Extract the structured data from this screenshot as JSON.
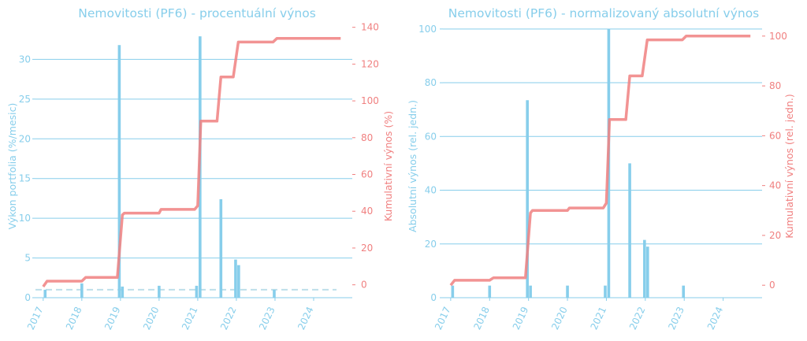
{
  "colors": {
    "bar": "#87CEEB",
    "line": "#F08080",
    "title": "#87CEEB",
    "dash": "#ADD8E6"
  },
  "chart_data": [
    {
      "type": "bar+line",
      "title": "Nemovitosti (PF6) - procentuální výnos",
      "ylabel_left": "Výkon portfolia (%/mesic)",
      "ylabel_right": "Kumulativní výnos (%)",
      "x_ticks": [
        "2017",
        "2018",
        "2019",
        "2020",
        "2021",
        "2022",
        "2023",
        "2024"
      ],
      "xlim": [
        2016.8,
        2025.0
      ],
      "ylim_left": [
        0,
        34.5
      ],
      "ylim_right": [
        -7,
        142
      ],
      "yticks_left": [
        0,
        5,
        10,
        15,
        20,
        25,
        30
      ],
      "yticks_right": [
        0,
        20,
        40,
        60,
        80,
        100,
        120,
        140
      ],
      "grid": true,
      "bars": [
        {
          "x": 2017.05,
          "y": 1.0
        },
        {
          "x": 2018.0,
          "y": 1.8
        },
        {
          "x": 2018.97,
          "y": 31.8
        },
        {
          "x": 2019.05,
          "y": 1.4
        },
        {
          "x": 2020.0,
          "y": 1.5
        },
        {
          "x": 2020.97,
          "y": 1.5
        },
        {
          "x": 2021.06,
          "y": 32.9
        },
        {
          "x": 2021.6,
          "y": 12.4
        },
        {
          "x": 2021.98,
          "y": 4.8
        },
        {
          "x": 2022.06,
          "y": 4.1
        },
        {
          "x": 2022.98,
          "y": 1.0
        }
      ],
      "cumulative": [
        {
          "x": 2017.0,
          "y": -1
        },
        {
          "x": 2017.1,
          "y": 2
        },
        {
          "x": 2018.0,
          "y": 2
        },
        {
          "x": 2018.1,
          "y": 4
        },
        {
          "x": 2018.92,
          "y": 4
        },
        {
          "x": 2019.05,
          "y": 38
        },
        {
          "x": 2019.1,
          "y": 39
        },
        {
          "x": 2020.0,
          "y": 39
        },
        {
          "x": 2020.05,
          "y": 41
        },
        {
          "x": 2020.92,
          "y": 41
        },
        {
          "x": 2021.0,
          "y": 43
        },
        {
          "x": 2021.08,
          "y": 89
        },
        {
          "x": 2021.5,
          "y": 89
        },
        {
          "x": 2021.6,
          "y": 113
        },
        {
          "x": 2021.92,
          "y": 113
        },
        {
          "x": 2022.05,
          "y": 132
        },
        {
          "x": 2022.95,
          "y": 132
        },
        {
          "x": 2023.05,
          "y": 134
        },
        {
          "x": 2024.7,
          "y": 134
        }
      ],
      "dashed_y_left": 1.0
    },
    {
      "type": "bar+line",
      "title": "Nemovitosti (PF6) - normalizovaný absolutní výnos",
      "ylabel_left": "Absolutní výnos (rel. jedn.)",
      "ylabel_right": "Kumulativní výnos (rel. jedn.)",
      "x_ticks": [
        "2017",
        "2018",
        "2019",
        "2020",
        "2021",
        "2022",
        "2023",
        "2024"
      ],
      "xlim": [
        2016.8,
        2025.0
      ],
      "ylim_left": [
        0,
        102
      ],
      "ylim_right": [
        -5,
        105
      ],
      "yticks_left": [
        0,
        20,
        40,
        60,
        80,
        100
      ],
      "yticks_right": [
        0,
        20,
        40,
        60,
        80,
        100
      ],
      "grid": true,
      "bars": [
        {
          "x": 2017.05,
          "y": 4.5
        },
        {
          "x": 2018.0,
          "y": 4.5
        },
        {
          "x": 2018.97,
          "y": 73.5
        },
        {
          "x": 2019.05,
          "y": 4.5
        },
        {
          "x": 2020.0,
          "y": 4.5
        },
        {
          "x": 2020.97,
          "y": 4.5
        },
        {
          "x": 2021.06,
          "y": 100
        },
        {
          "x": 2021.6,
          "y": 50
        },
        {
          "x": 2021.98,
          "y": 21.5
        },
        {
          "x": 2022.06,
          "y": 19.0
        },
        {
          "x": 2022.98,
          "y": 4.5
        }
      ],
      "cumulative": [
        {
          "x": 2017.0,
          "y": 0
        },
        {
          "x": 2017.1,
          "y": 2
        },
        {
          "x": 2018.0,
          "y": 2
        },
        {
          "x": 2018.1,
          "y": 3
        },
        {
          "x": 2018.92,
          "y": 3
        },
        {
          "x": 2019.05,
          "y": 29
        },
        {
          "x": 2019.1,
          "y": 30
        },
        {
          "x": 2020.0,
          "y": 30
        },
        {
          "x": 2020.05,
          "y": 31
        },
        {
          "x": 2020.92,
          "y": 31
        },
        {
          "x": 2021.0,
          "y": 33
        },
        {
          "x": 2021.08,
          "y": 66.5
        },
        {
          "x": 2021.5,
          "y": 66.5
        },
        {
          "x": 2021.6,
          "y": 84
        },
        {
          "x": 2021.92,
          "y": 84
        },
        {
          "x": 2022.05,
          "y": 98.5
        },
        {
          "x": 2022.95,
          "y": 98.5
        },
        {
          "x": 2023.05,
          "y": 100
        },
        {
          "x": 2024.7,
          "y": 100
        }
      ]
    }
  ]
}
